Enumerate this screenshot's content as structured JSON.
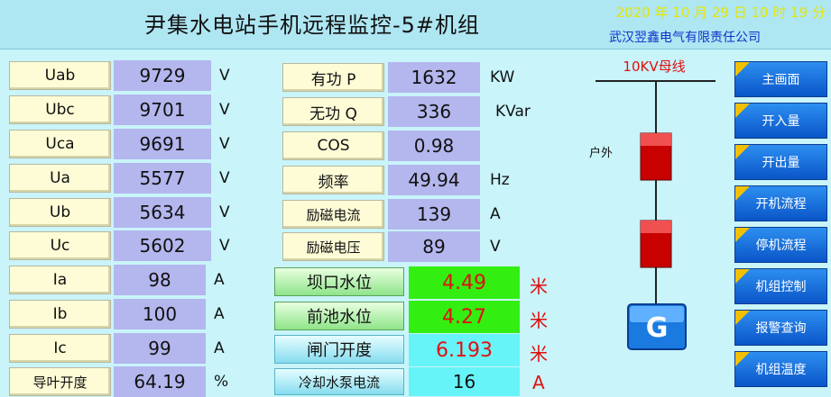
{
  "header": {
    "title": "尹集水电站手机远程监控-5#机组",
    "datetime": "2020 年  10 月  29 日  10 时  19 分",
    "company": "武汉翌鑫电气有限责任公司"
  },
  "left": [
    {
      "label": "Uab",
      "value": "9729",
      "unit": "V"
    },
    {
      "label": "Ubc",
      "value": "9701",
      "unit": "V"
    },
    {
      "label": "Uca",
      "value": "9691",
      "unit": "V"
    },
    {
      "label": "Ua",
      "value": "5577",
      "unit": "V"
    },
    {
      "label": "Ub",
      "value": "5634",
      "unit": "V"
    },
    {
      "label": "Uc",
      "value": "5602",
      "unit": "V"
    },
    {
      "label": "Ia",
      "value": "98",
      "unit": "A"
    },
    {
      "label": "Ib",
      "value": "100",
      "unit": "A"
    },
    {
      "label": "Ic",
      "value": "99",
      "unit": "A"
    },
    {
      "label": "导叶开度",
      "value": "64.19",
      "unit": "%"
    }
  ],
  "middle": [
    {
      "label": "有功 P",
      "value": "1632",
      "unit": "KW"
    },
    {
      "label": "无功 Q",
      "value": "336",
      "unit": "KVar"
    },
    {
      "label": "COS",
      "value": "0.98",
      "unit": ""
    },
    {
      "label": "频率",
      "value": "49.94",
      "unit": "Hz"
    },
    {
      "label": "励磁电流",
      "value": "139",
      "unit": "A"
    },
    {
      "label": "励磁电压",
      "value": "89",
      "unit": "V"
    }
  ],
  "levels": [
    {
      "label": "坝口水位",
      "value": "4.49",
      "unit": "米"
    },
    {
      "label": "前池水位",
      "value": "4.27",
      "unit": "米"
    },
    {
      "label": "闸门开度",
      "value": "6.193",
      "unit": "米"
    },
    {
      "label": "冷却水泵电流",
      "value": "16",
      "unit": "A"
    }
  ],
  "diagram": {
    "bus_label": "10KV母线",
    "outdoor_label": "户外",
    "generator_label": "G",
    "breaker_color": "#c00000",
    "generator_color": "#1a7ae0"
  },
  "nav": [
    {
      "label": "主画面"
    },
    {
      "label": "开入量"
    },
    {
      "label": "开出量"
    },
    {
      "label": "开机流程"
    },
    {
      "label": "停机流程"
    },
    {
      "label": "机组控制"
    },
    {
      "label": "报警查询"
    },
    {
      "label": "机组温度"
    }
  ]
}
